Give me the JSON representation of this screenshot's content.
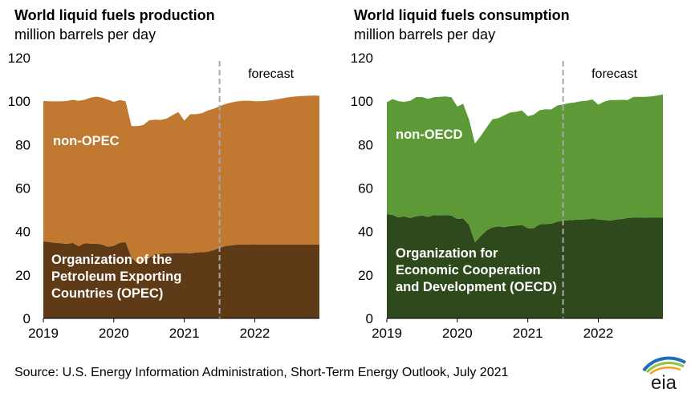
{
  "chart_data": [
    {
      "type": "area",
      "title": "World liquid fuels production",
      "subtitle": "million barrels per day",
      "ylim": [
        0,
        120
      ],
      "yticks": [
        0,
        20,
        40,
        60,
        80,
        100,
        120
      ],
      "xticks": [
        "2019",
        "2020",
        "2021",
        "2022"
      ],
      "annotation": "forecast",
      "forecast_start": "2021-07",
      "grid": false,
      "x": [
        "2019-01",
        "2019-02",
        "2019-03",
        "2019-04",
        "2019-05",
        "2019-06",
        "2019-07",
        "2019-08",
        "2019-09",
        "2019-10",
        "2019-11",
        "2019-12",
        "2020-01",
        "2020-02",
        "2020-03",
        "2020-04",
        "2020-05",
        "2020-06",
        "2020-07",
        "2020-08",
        "2020-09",
        "2020-10",
        "2020-11",
        "2020-12",
        "2021-01",
        "2021-02",
        "2021-03",
        "2021-04",
        "2021-05",
        "2021-06",
        "2021-07",
        "2021-08",
        "2021-09",
        "2021-10",
        "2021-11",
        "2021-12",
        "2022-01",
        "2022-02",
        "2022-03",
        "2022-04",
        "2022-05",
        "2022-06",
        "2022-07",
        "2022-08",
        "2022-09",
        "2022-10",
        "2022-11",
        "2022-12"
      ],
      "series": [
        {
          "name": "Organization of the Petroleum Exporting Countries (OPEC)",
          "color": "#5e3a17",
          "values": [
            35.5,
            35.2,
            34.8,
            34.6,
            34.3,
            34.8,
            33.2,
            34.6,
            34.4,
            34.4,
            34.0,
            33.0,
            33.4,
            34.8,
            35.2,
            28.0,
            25.5,
            26.0,
            28.0,
            29.5,
            29.8,
            30.0,
            30.0,
            30.2,
            30.1,
            30.0,
            30.3,
            30.5,
            30.7,
            31.5,
            32.5,
            33.3,
            33.6,
            34.0,
            34.0,
            34.0,
            34.1,
            34.0,
            34.0,
            34.0,
            34.0,
            34.0,
            34.0,
            34.0,
            34.0,
            34.0,
            34.0,
            34.0
          ]
        },
        {
          "name": "non-OPEC",
          "color": "#c17831",
          "values": [
            64.6,
            64.7,
            65.1,
            65.3,
            65.8,
            65.8,
            67.0,
            66.0,
            67.2,
            67.7,
            67.6,
            67.7,
            66.3,
            65.7,
            64.8,
            60.5,
            63.0,
            63.0,
            63.2,
            62.0,
            61.6,
            62.0,
            63.6,
            64.8,
            60.9,
            64.0,
            63.7,
            64.0,
            65.0,
            65.0,
            65.2,
            65.4,
            65.8,
            65.9,
            66.2,
            66.2,
            65.9,
            66.0,
            66.2,
            66.5,
            67.0,
            67.5,
            67.9,
            68.2,
            68.4,
            68.5,
            68.6,
            68.5
          ]
        }
      ],
      "labels": {
        "non_opec": "non-OPEC",
        "opec": [
          "Organization of the",
          "Petroleum Exporting",
          "Countries (OPEC)"
        ]
      }
    },
    {
      "type": "area",
      "title": "World liquid fuels consumption",
      "subtitle": "million barrels per day",
      "ylim": [
        0,
        120
      ],
      "yticks": [
        0,
        20,
        40,
        60,
        80,
        100,
        120
      ],
      "xticks": [
        "2019",
        "2020",
        "2021",
        "2022"
      ],
      "annotation": "forecast",
      "forecast_start": "2021-07",
      "grid": false,
      "x": [
        "2019-01",
        "2019-02",
        "2019-03",
        "2019-04",
        "2019-05",
        "2019-06",
        "2019-07",
        "2019-08",
        "2019-09",
        "2019-10",
        "2019-11",
        "2019-12",
        "2020-01",
        "2020-02",
        "2020-03",
        "2020-04",
        "2020-05",
        "2020-06",
        "2020-07",
        "2020-08",
        "2020-09",
        "2020-10",
        "2020-11",
        "2020-12",
        "2021-01",
        "2021-02",
        "2021-03",
        "2021-04",
        "2021-05",
        "2021-06",
        "2021-07",
        "2021-08",
        "2021-09",
        "2021-10",
        "2021-11",
        "2021-12",
        "2022-01",
        "2022-02",
        "2022-03",
        "2022-04",
        "2022-05",
        "2022-06",
        "2022-07",
        "2022-08",
        "2022-09",
        "2022-10",
        "2022-11",
        "2022-12"
      ],
      "series": [
        {
          "name": "Organization for Economic Cooperation and Development (OECD)",
          "color": "#2e4a1d",
          "values": [
            48.0,
            47.6,
            46.5,
            47.0,
            46.2,
            47.0,
            47.4,
            46.7,
            47.6,
            47.4,
            47.6,
            47.3,
            45.8,
            46.0,
            43.0,
            35.0,
            38.0,
            40.5,
            41.9,
            42.3,
            42.0,
            42.5,
            42.7,
            43.0,
            41.5,
            41.5,
            43.3,
            43.5,
            43.6,
            44.5,
            45.0,
            45.2,
            45.4,
            45.5,
            45.6,
            46.0,
            45.5,
            45.3,
            45.0,
            45.5,
            45.8,
            46.2,
            46.5,
            46.5,
            46.4,
            46.5,
            46.5,
            46.5
          ]
        },
        {
          "name": "non-OECD",
          "color": "#5d9936",
          "values": [
            51.5,
            53.4,
            53.5,
            52.7,
            54.0,
            54.9,
            54.5,
            54.4,
            54.2,
            54.6,
            54.6,
            54.5,
            51.7,
            52.8,
            48.5,
            45.5,
            46.0,
            47.5,
            49.8,
            49.9,
            51.5,
            52.3,
            52.4,
            52.7,
            51.6,
            52.3,
            52.5,
            52.8,
            52.6,
            53.5,
            53.5,
            53.9,
            54.0,
            54.5,
            54.6,
            54.8,
            52.9,
            54.5,
            55.5,
            55.0,
            54.8,
            54.3,
            55.5,
            55.5,
            55.6,
            55.7,
            56.1,
            56.6
          ]
        }
      ],
      "labels": {
        "non_oecd": "non-OECD",
        "oecd": [
          "Organization for",
          "Economic Cooperation",
          "and Development (OECD)"
        ]
      }
    }
  ],
  "source": "Source: U.S. Energy Information Administration, Short-Term Energy Outlook, July 2021",
  "logo_text": "eia"
}
